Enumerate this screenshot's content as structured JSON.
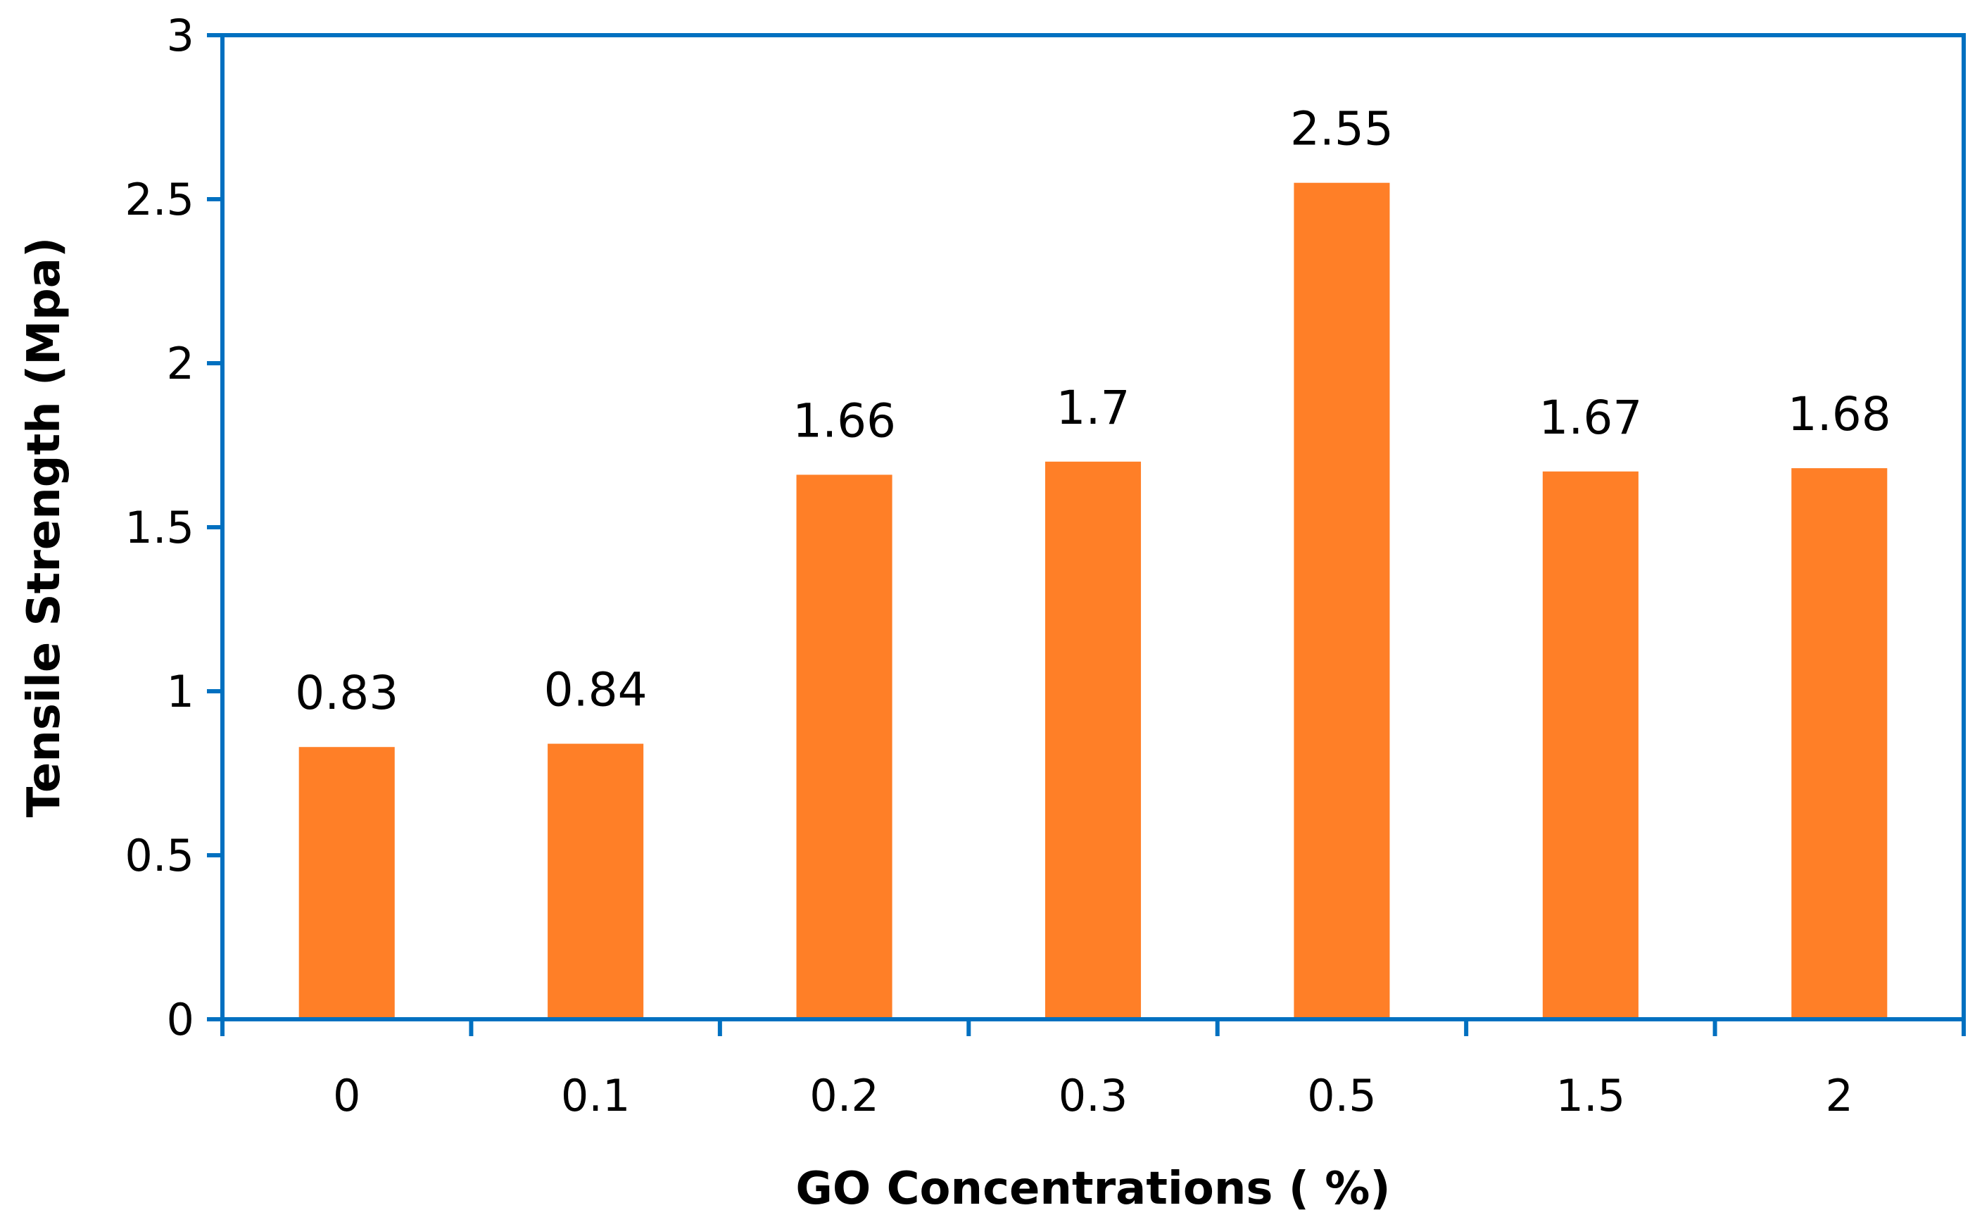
{
  "chart_data": {
    "type": "bar",
    "title": "",
    "xlabel": "GO Concentrations ( %)",
    "ylabel": "Tensile Strength (Mpa)",
    "categories": [
      "0",
      "0.1",
      "0.2",
      "0.3",
      "0.5",
      "1.5",
      "2"
    ],
    "values": [
      0.83,
      0.84,
      1.66,
      1.7,
      2.55,
      1.67,
      1.68
    ],
    "data_labels": [
      "0.83",
      "0.84",
      "1.66",
      "1.7",
      "2.55",
      "1.67",
      "1.68"
    ],
    "ylim": [
      0,
      3
    ],
    "yticks": [
      "0",
      "0.5",
      "1",
      "1.5",
      "2",
      "2.5",
      "3"
    ],
    "ytick_values": [
      0,
      0.5,
      1,
      1.5,
      2,
      2.5,
      3
    ],
    "grid": false,
    "legend": "none"
  },
  "colors": {
    "bar": "#FF7F27",
    "axis": "#0070C0",
    "text": "#000000",
    "background": "#FFFFFF"
  }
}
